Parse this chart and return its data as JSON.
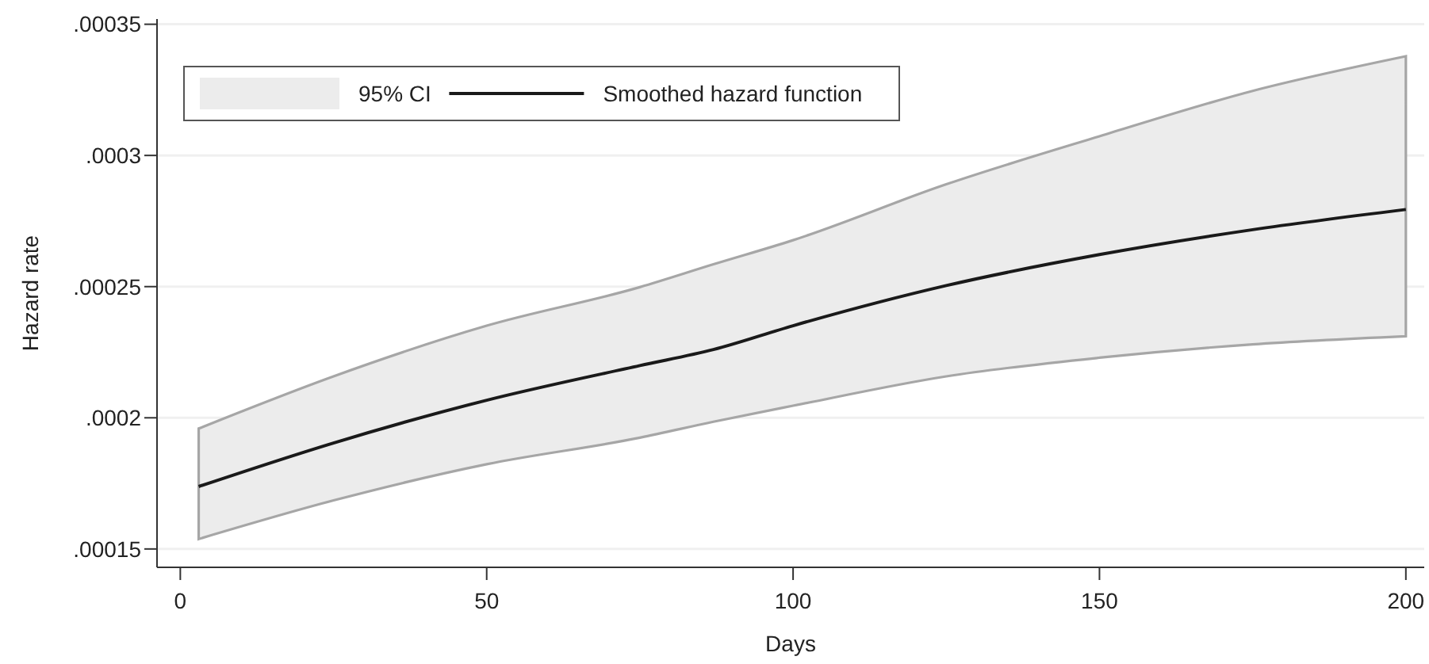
{
  "chart_data": {
    "type": "line",
    "xlabel": "Days",
    "ylabel": "Hazard rate",
    "x": [
      3,
      25,
      50,
      75,
      87,
      100,
      125,
      150,
      175,
      200
    ],
    "series": [
      {
        "name": "Smoothed hazard function",
        "color": "#1a1a1a",
        "values": [
          0.0001738,
          0.0001904,
          0.0002067,
          0.0002199,
          0.000226,
          0.0002351,
          0.0002504,
          0.0002622,
          0.0002717,
          0.0002794
        ],
        "lower": [
          0.0001538,
          0.0001685,
          0.0001823,
          0.0001924,
          0.0001985,
          0.0002046,
          0.0002158,
          0.0002229,
          0.000228,
          0.0002311
        ],
        "upper": [
          0.0001959,
          0.0002158,
          0.0002351,
          0.0002498,
          0.0002585,
          0.0002677,
          0.000289,
          0.0003073,
          0.0003246,
          0.0003378
        ]
      }
    ],
    "annotations": [
      "95% CI"
    ],
    "xlim": [
      -3.8,
      203
    ],
    "xticks": [
      0,
      50,
      100,
      150,
      200
    ],
    "ylim": [
      0.000143,
      0.000352
    ],
    "yticks": [
      {
        "value": 0.00015,
        "label": ".00015"
      },
      {
        "value": 0.0002,
        "label": ".0002"
      },
      {
        "value": 0.00025,
        "label": ".00025"
      },
      {
        "value": 0.0003,
        "label": ".0003"
      },
      {
        "value": 0.00035,
        "label": ".00035"
      }
    ],
    "grid": "y",
    "legend": "top left",
    "line_style": "solid",
    "marker": "none"
  }
}
